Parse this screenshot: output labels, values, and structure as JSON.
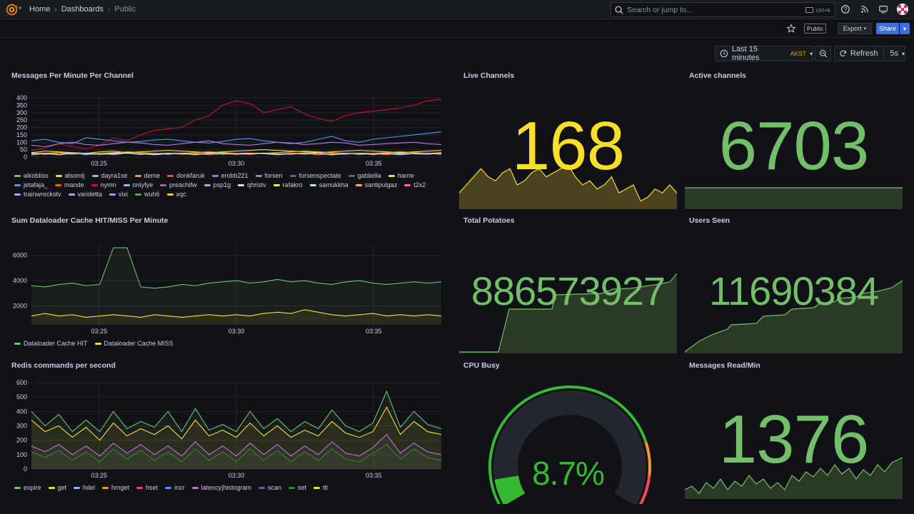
{
  "breadcrumbs": [
    "Home",
    "Dashboards",
    "Public"
  ],
  "search": {
    "placeholder": "Search or jump to...",
    "shortcut": "ctrl+k"
  },
  "toolbar": {
    "public_badge": "Public",
    "export_label": "Export",
    "share_label": "Share"
  },
  "time_picker": {
    "range": "Last 15 minutes",
    "timezone": "AKST",
    "refresh_label": "Refresh",
    "refresh_interval": "5s"
  },
  "colors": {
    "green": "#73bf69",
    "yellow": "#fade2a",
    "accent_blue": "#3d71d9"
  },
  "panels": {
    "messages_per_minute": {
      "title": "Messages Per Minute Per Channel",
      "legend": [
        {
          "name": "alkobliss",
          "color": "#73bf69"
        },
        {
          "name": "alsomij",
          "color": "#fade2a"
        },
        {
          "name": "dayra1se",
          "color": "#8ab8ff"
        },
        {
          "name": "deme",
          "color": "#ff9830"
        },
        {
          "name": "donkfaruk",
          "color": "#f2495c"
        },
        {
          "name": "erobb221",
          "color": "#5794f2"
        },
        {
          "name": "forsen",
          "color": "#b877d9"
        },
        {
          "name": "forsenspectate",
          "color": "#705da0"
        },
        {
          "name": "gabiiella",
          "color": "#37872d"
        },
        {
          "name": "harrie",
          "color": "#fade2a"
        },
        {
          "name": "jetafaja_",
          "color": "#5794f2"
        },
        {
          "name": "mande",
          "color": "#fa6400"
        },
        {
          "name": "nymn",
          "color": "#c4162a"
        },
        {
          "name": "onlyfye",
          "color": "#8ab8ff"
        },
        {
          "name": "preachifw",
          "color": "#a16bb1"
        },
        {
          "name": "psp1g",
          "color": "#ca95e5"
        },
        {
          "name": "qhristv",
          "color": "#c8f2c2"
        },
        {
          "name": "rafakro",
          "color": "#ffee52"
        },
        {
          "name": "samukkha",
          "color": "#a9f0ff"
        },
        {
          "name": "santipulgaz",
          "color": "#ffb357"
        },
        {
          "name": "t2x2",
          "color": "#ff7383"
        },
        {
          "name": "trainwreckstv",
          "color": "#8ab8ff"
        },
        {
          "name": "varidetta",
          "color": "#ca95e5"
        },
        {
          "name": "vixi",
          "color": "#a1a1ff"
        },
        {
          "name": "wuh6",
          "color": "#56a64b"
        },
        {
          "name": "xqc",
          "color": "#f2cc0c"
        }
      ]
    },
    "dataloader": {
      "title": "Sum Dataloader Cache HIT/MISS Per Minute",
      "legend": [
        {
          "name": "Dataloader Cache HIT",
          "color": "#73bf69"
        },
        {
          "name": "Dataloader Cache MISS",
          "color": "#fade2a"
        }
      ]
    },
    "redis": {
      "title": "Redis commands per second",
      "legend": [
        {
          "name": "expire",
          "color": "#73bf69"
        },
        {
          "name": "get",
          "color": "#fade2a"
        },
        {
          "name": "hdel",
          "color": "#8ab8ff"
        },
        {
          "name": "hmget",
          "color": "#ff9830"
        },
        {
          "name": "hset",
          "color": "#f2495c"
        },
        {
          "name": "incr",
          "color": "#5794f2"
        },
        {
          "name": "latency|histogram",
          "color": "#b877d9"
        },
        {
          "name": "scan",
          "color": "#705da0"
        },
        {
          "name": "set",
          "color": "#37872d"
        },
        {
          "name": "ttl",
          "color": "#fade2a"
        }
      ]
    },
    "live_channels": {
      "title": "Live Channels",
      "value": "168",
      "color": "#fade2a"
    },
    "active_channels": {
      "title": "Active channels",
      "value": "6703",
      "color": "#73bf69"
    },
    "total_potatoes": {
      "title": "Total Potatoes",
      "value": "886573927",
      "color": "#73bf69"
    },
    "users_seen": {
      "title": "Users Seen",
      "value": "11690384",
      "color": "#73bf69"
    },
    "cpu_busy": {
      "title": "CPU Busy",
      "value": "8.7%",
      "percent": 8.7,
      "color": "#37b832"
    },
    "messages_read": {
      "title": "Messages Read/Min",
      "value": "1376",
      "color": "#73bf69"
    }
  },
  "chart_data": [
    {
      "type": "line",
      "title": "Messages Per Minute Per Channel",
      "x_ticks": [
        "03:25",
        "03:30",
        "03:35"
      ],
      "y_ticks": [
        0,
        50,
        100,
        150,
        200,
        250,
        300,
        350,
        400
      ],
      "ylim": [
        0,
        400
      ],
      "series": [
        {
          "name": "nymn",
          "values": [
            45,
            60,
            90,
            70,
            55,
            80,
            130,
            110,
            150,
            180,
            190,
            200,
            250,
            280,
            350,
            380,
            360,
            300,
            320,
            340,
            290,
            260,
            240,
            280,
            300,
            310,
            320,
            330,
            350,
            380,
            390
          ]
        },
        {
          "name": "erobb221",
          "values": [
            110,
            120,
            100,
            90,
            130,
            120,
            110,
            100,
            105,
            115,
            120,
            110,
            100,
            95,
            105,
            120,
            125,
            110,
            100,
            90,
            100,
            120,
            140,
            110,
            100,
            120,
            130,
            140,
            150,
            160,
            170
          ]
        },
        {
          "name": "forsen",
          "values": [
            80,
            70,
            90,
            100,
            85,
            80,
            90,
            100,
            95,
            85,
            80,
            90,
            100,
            110,
            90,
            85,
            80,
            90,
            100,
            95,
            85,
            90,
            100,
            95,
            80,
            85,
            90,
            95,
            100,
            90,
            85
          ]
        },
        {
          "name": "alsomij",
          "values": [
            30,
            40,
            35,
            30,
            25,
            35,
            40,
            30,
            35,
            40,
            45,
            40,
            35,
            30,
            35,
            40,
            45,
            50,
            45,
            40,
            35,
            30,
            35,
            40,
            45,
            40,
            35,
            30,
            35,
            40,
            45
          ]
        },
        {
          "name": "xqc",
          "values": [
            20,
            25,
            30,
            25,
            20,
            25,
            30,
            35,
            30,
            25,
            20,
            25,
            30,
            35,
            30,
            25,
            20,
            25,
            30,
            35,
            40,
            35,
            30,
            25,
            20,
            25,
            30,
            35,
            30,
            25,
            30
          ]
        }
      ]
    },
    {
      "type": "area",
      "title": "Sum Dataloader Cache HIT/MISS Per Minute",
      "x_ticks": [
        "03:25",
        "03:30",
        "03:35"
      ],
      "y_ticks": [
        2000,
        4000,
        6000
      ],
      "ylim": [
        500,
        7000
      ],
      "series": [
        {
          "name": "Dataloader Cache HIT",
          "values": [
            3600,
            3500,
            3700,
            3800,
            3600,
            3700,
            6600,
            6600,
            3500,
            3400,
            3500,
            3700,
            3600,
            3800,
            3900,
            4000,
            3800,
            3900,
            4100,
            3900,
            4000,
            3800,
            3700,
            3900,
            4000,
            3800,
            3700,
            3800,
            3900,
            3800,
            3900
          ]
        },
        {
          "name": "Dataloader Cache MISS",
          "values": [
            1200,
            1400,
            1200,
            1300,
            1100,
            1200,
            1300,
            1200,
            1100,
            1300,
            1200,
            1100,
            1200,
            1300,
            1200,
            1300,
            1200,
            1400,
            1500,
            1400,
            1700,
            1500,
            1300,
            1200,
            1300,
            1400,
            1200,
            1300,
            1200,
            1300,
            1200
          ]
        }
      ]
    },
    {
      "type": "area",
      "title": "Redis commands per second",
      "x_ticks": [
        "03:25",
        "03:30",
        "03:35"
      ],
      "y_ticks": [
        0,
        100,
        200,
        300,
        400,
        500,
        600
      ],
      "ylim": [
        0,
        600
      ],
      "series": [
        {
          "name": "expire",
          "values": [
            400,
            300,
            380,
            260,
            340,
            260,
            400,
            280,
            330,
            290,
            400,
            260,
            420,
            270,
            310,
            260,
            400,
            280,
            350,
            260,
            330,
            280,
            410,
            300,
            260,
            320,
            540,
            290,
            400,
            310,
            280
          ]
        },
        {
          "name": "get",
          "values": [
            340,
            260,
            300,
            220,
            290,
            200,
            320,
            230,
            280,
            240,
            300,
            210,
            340,
            230,
            270,
            220,
            320,
            230,
            300,
            220,
            270,
            230,
            330,
            250,
            220,
            260,
            430,
            240,
            330,
            260,
            240
          ]
        },
        {
          "name": "latency|histogram",
          "values": [
            160,
            120,
            170,
            100,
            160,
            90,
            180,
            110,
            170,
            100,
            160,
            90,
            190,
            100,
            160,
            90,
            180,
            100,
            170,
            90,
            160,
            100,
            190,
            110,
            90,
            150,
            240,
            110,
            180,
            120,
            100
          ]
        },
        {
          "name": "set",
          "values": [
            120,
            80,
            130,
            60,
            120,
            50,
            140,
            70,
            130,
            60,
            120,
            50,
            140,
            60,
            120,
            50,
            140,
            60,
            130,
            50,
            120,
            60,
            140,
            70,
            50,
            110,
            170,
            70,
            140,
            80,
            60
          ]
        }
      ]
    },
    {
      "type": "area",
      "title": "Live Channels",
      "values": [
        164,
        166,
        168,
        170,
        168,
        167,
        169,
        170,
        166,
        167,
        169,
        170,
        168,
        169,
        170,
        171,
        168,
        166,
        167,
        165,
        166,
        168,
        164,
        165,
        166,
        162,
        163,
        165,
        164,
        166,
        164
      ]
    }
  ]
}
